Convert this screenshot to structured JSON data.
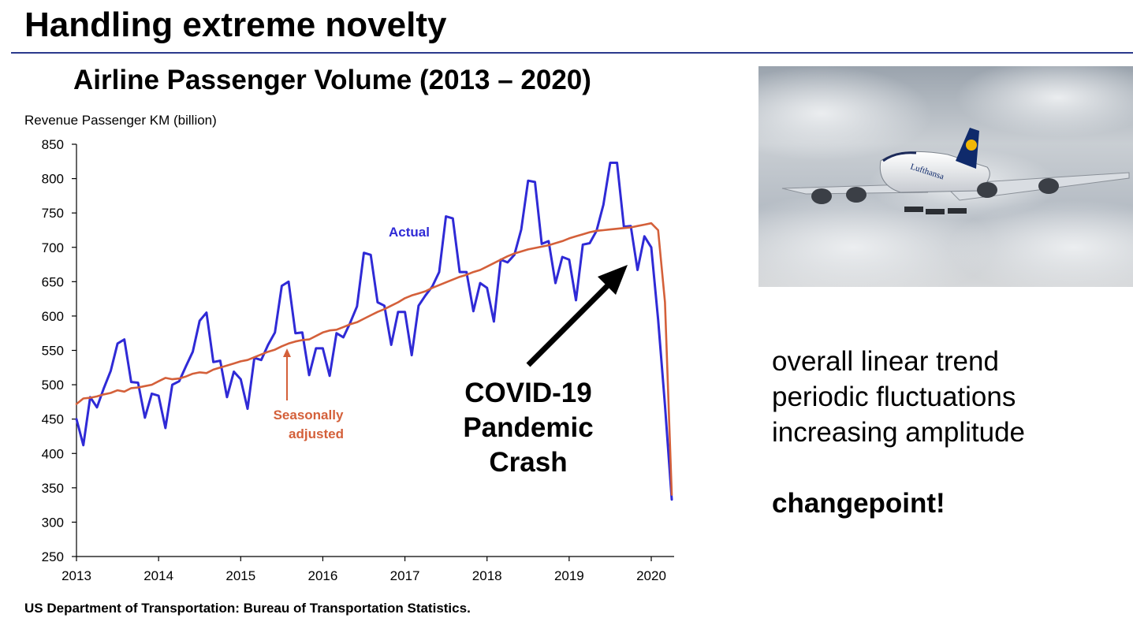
{
  "slide": {
    "title": "Handling extreme novelty",
    "source": "US Department of Transportation: Bureau of Transportation Statistics."
  },
  "photo": {
    "subject": "Lufthansa A380 airliner in flight against cloudy sky",
    "airline_text": "Lufthansa"
  },
  "notes": {
    "lines": [
      "overall linear trend",
      "periodic fluctuations",
      "increasing amplitude"
    ],
    "emphasis": "changepoint!"
  },
  "colors": {
    "actual": "#2f2ad6",
    "seasonal": "#d4603a",
    "arrow": "#000000",
    "rule": "#2b3a8c"
  },
  "chart_data": {
    "type": "line",
    "title": "Airline Passenger Volume (2013 – 2020)",
    "ylabel": "Revenue Passenger KM (billion)",
    "xlabel": "",
    "ylim": [
      250,
      850
    ],
    "xlim": [
      2013,
      2020.25
    ],
    "yticks": [
      250,
      300,
      350,
      400,
      450,
      500,
      550,
      600,
      650,
      700,
      750,
      800,
      850
    ],
    "xticks": [
      2013,
      2014,
      2015,
      2016,
      2017,
      2018,
      2019,
      2020
    ],
    "grid": false,
    "start": "2013-01",
    "step": "month",
    "series": [
      {
        "name": "Actual",
        "color": "#2f2ad6",
        "values": [
          450,
          412,
          482,
          467,
          495,
          520,
          560,
          566,
          504,
          503,
          452,
          487,
          484,
          437,
          500,
          505,
          527,
          548,
          593,
          605,
          533,
          535,
          482,
          519,
          508,
          465,
          539,
          536,
          558,
          576,
          644,
          650,
          575,
          576,
          514,
          553,
          553,
          513,
          575,
          569,
          590,
          614,
          692,
          689,
          620,
          615,
          558,
          606,
          606,
          543,
          615,
          630,
          643,
          664,
          745,
          742,
          664,
          664,
          607,
          648,
          641,
          592,
          682,
          678,
          689,
          726,
          797,
          795,
          705,
          709,
          648,
          686,
          682,
          623,
          704,
          706,
          724,
          762,
          823,
          823,
          730,
          731,
          667,
          716,
          700,
          595,
          470,
          333
        ]
      },
      {
        "name": "Seasonally adjusted",
        "color": "#d4603a",
        "values": [
          472,
          480,
          481,
          483,
          486,
          488,
          492,
          490,
          495,
          496,
          498,
          500,
          505,
          510,
          508,
          509,
          512,
          516,
          518,
          517,
          522,
          525,
          528,
          531,
          534,
          536,
          540,
          544,
          548,
          551,
          556,
          560,
          563,
          565,
          566,
          571,
          576,
          579,
          580,
          584,
          588,
          591,
          596,
          601,
          606,
          610,
          615,
          620,
          626,
          630,
          633,
          636,
          641,
          645,
          649,
          653,
          657,
          660,
          664,
          667,
          672,
          677,
          682,
          687,
          691,
          694,
          697,
          699,
          701,
          703,
          706,
          709,
          713,
          716,
          719,
          722,
          724,
          725,
          726,
          727,
          728,
          729,
          731,
          733,
          735,
          725,
          620,
          340
        ]
      }
    ],
    "annotations": [
      {
        "text": "Actual",
        "color": "#2f2ad6"
      },
      {
        "text": "Seasonally\nadjusted",
        "color": "#d4603a",
        "arrow": true
      },
      {
        "text": "COVID-19\nPandemic\nCrash",
        "color": "#000000",
        "arrow": true
      }
    ]
  }
}
